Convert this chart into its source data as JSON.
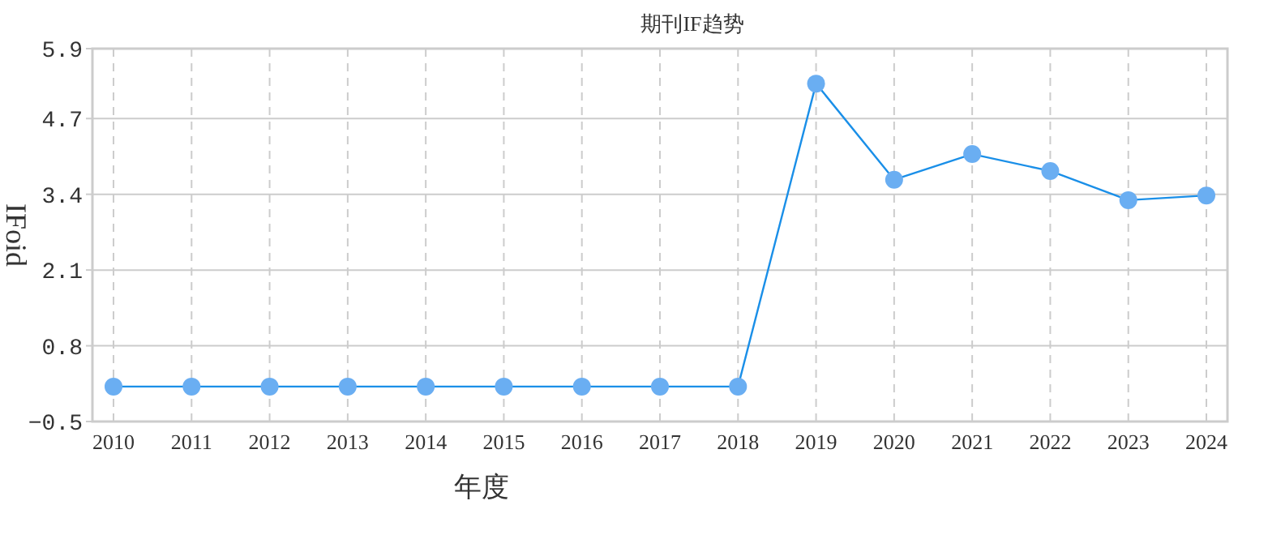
{
  "chart_data": {
    "type": "line",
    "title": "期刊IF趋势",
    "xlabel": "年度",
    "ylabel": "IFoid",
    "categories": [
      "2010",
      "2011",
      "2012",
      "2013",
      "2014",
      "2015",
      "2016",
      "2017",
      "2018",
      "2019",
      "2020",
      "2021",
      "2022",
      "2023",
      "2024"
    ],
    "series": [
      {
        "color": "#1a8fe8",
        "values": [
          0.1,
          0.1,
          0.1,
          0.1,
          0.1,
          0.1,
          0.1,
          0.1,
          0.1,
          5.3,
          3.65,
          4.09,
          3.8,
          3.3,
          3.38
        ]
      }
    ],
    "ylim": [
      -0.5,
      5.9
    ],
    "yticks": [
      -0.5,
      0.8,
      2.1,
      3.4,
      4.7,
      5.9
    ],
    "grid": true,
    "marker": "circle",
    "line_style": "solid"
  }
}
